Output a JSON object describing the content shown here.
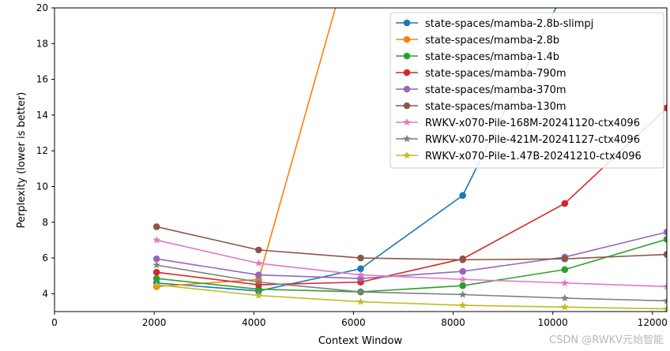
{
  "chart_data": {
    "type": "line",
    "xlabel": "Context Window",
    "ylabel": "Perplexity (lower is better)",
    "xlim": [
      0,
      12288
    ],
    "ylim": [
      3,
      20
    ],
    "xticks": [
      0,
      2000,
      4000,
      6000,
      8000,
      10000,
      12000
    ],
    "yticks": [
      4,
      6,
      8,
      10,
      12,
      14,
      16,
      18,
      20
    ],
    "legend_position": "top-right",
    "series": [
      {
        "name": "state-spaces/mamba-2.8b-slimpj",
        "color": "#1f77b4",
        "marker": "circle",
        "x": [
          2048,
          4096,
          6144,
          8192,
          10240
        ],
        "y": [
          4.6,
          4.15,
          5.4,
          9.5,
          21.0
        ]
      },
      {
        "name": "state-spaces/mamba-2.8b",
        "color": "#ff7f0e",
        "marker": "circle",
        "x": [
          2048,
          4096,
          6144
        ],
        "y": [
          4.4,
          4.8,
          25.0
        ]
      },
      {
        "name": "state-spaces/mamba-1.4b",
        "color": "#2ca02c",
        "marker": "circle",
        "x": [
          2048,
          4096,
          6144,
          8192,
          10240,
          12288
        ],
        "y": [
          4.85,
          4.25,
          4.1,
          4.45,
          5.35,
          7.05
        ]
      },
      {
        "name": "state-spaces/mamba-790m",
        "color": "#d62728",
        "marker": "circle",
        "x": [
          2048,
          4096,
          6144,
          8192,
          10240,
          12288
        ],
        "y": [
          5.2,
          4.5,
          4.65,
          5.95,
          9.05,
          14.4
        ]
      },
      {
        "name": "state-spaces/mamba-370m",
        "color": "#9467bd",
        "marker": "circle",
        "x": [
          2048,
          4096,
          6144,
          8192,
          10240,
          12288
        ],
        "y": [
          5.95,
          5.05,
          4.85,
          5.25,
          6.05,
          7.45
        ]
      },
      {
        "name": "state-spaces/mamba-130m",
        "color": "#8c564b",
        "marker": "circle",
        "x": [
          2048,
          4096,
          6144,
          8192,
          10240,
          12288
        ],
        "y": [
          7.75,
          6.45,
          6.0,
          5.9,
          5.95,
          6.2
        ]
      },
      {
        "name": "RWKV-x070-Pile-168M-20241120-ctx4096",
        "color": "#e377c2",
        "marker": "star",
        "x": [
          2048,
          4096,
          6144,
          8192,
          10240,
          12288
        ],
        "y": [
          7.0,
          5.7,
          5.05,
          4.8,
          4.6,
          4.4
        ]
      },
      {
        "name": "RWKV-x070-Pile-421M-20241127-ctx4096",
        "color": "#7f7f7f",
        "marker": "star",
        "x": [
          2048,
          4096,
          6144,
          8192,
          10240,
          12288
        ],
        "y": [
          5.6,
          4.65,
          4.1,
          3.95,
          3.75,
          3.6
        ]
      },
      {
        "name": "RWKV-x070-Pile-1.47B-20241210-ctx4096",
        "color": "#bcbd22",
        "marker": "star",
        "x": [
          2048,
          4096,
          6144,
          8192,
          10240,
          12288
        ],
        "y": [
          4.5,
          3.9,
          3.55,
          3.35,
          3.25,
          3.15
        ]
      }
    ]
  },
  "watermark": "CSDN @RWKV元始智能"
}
